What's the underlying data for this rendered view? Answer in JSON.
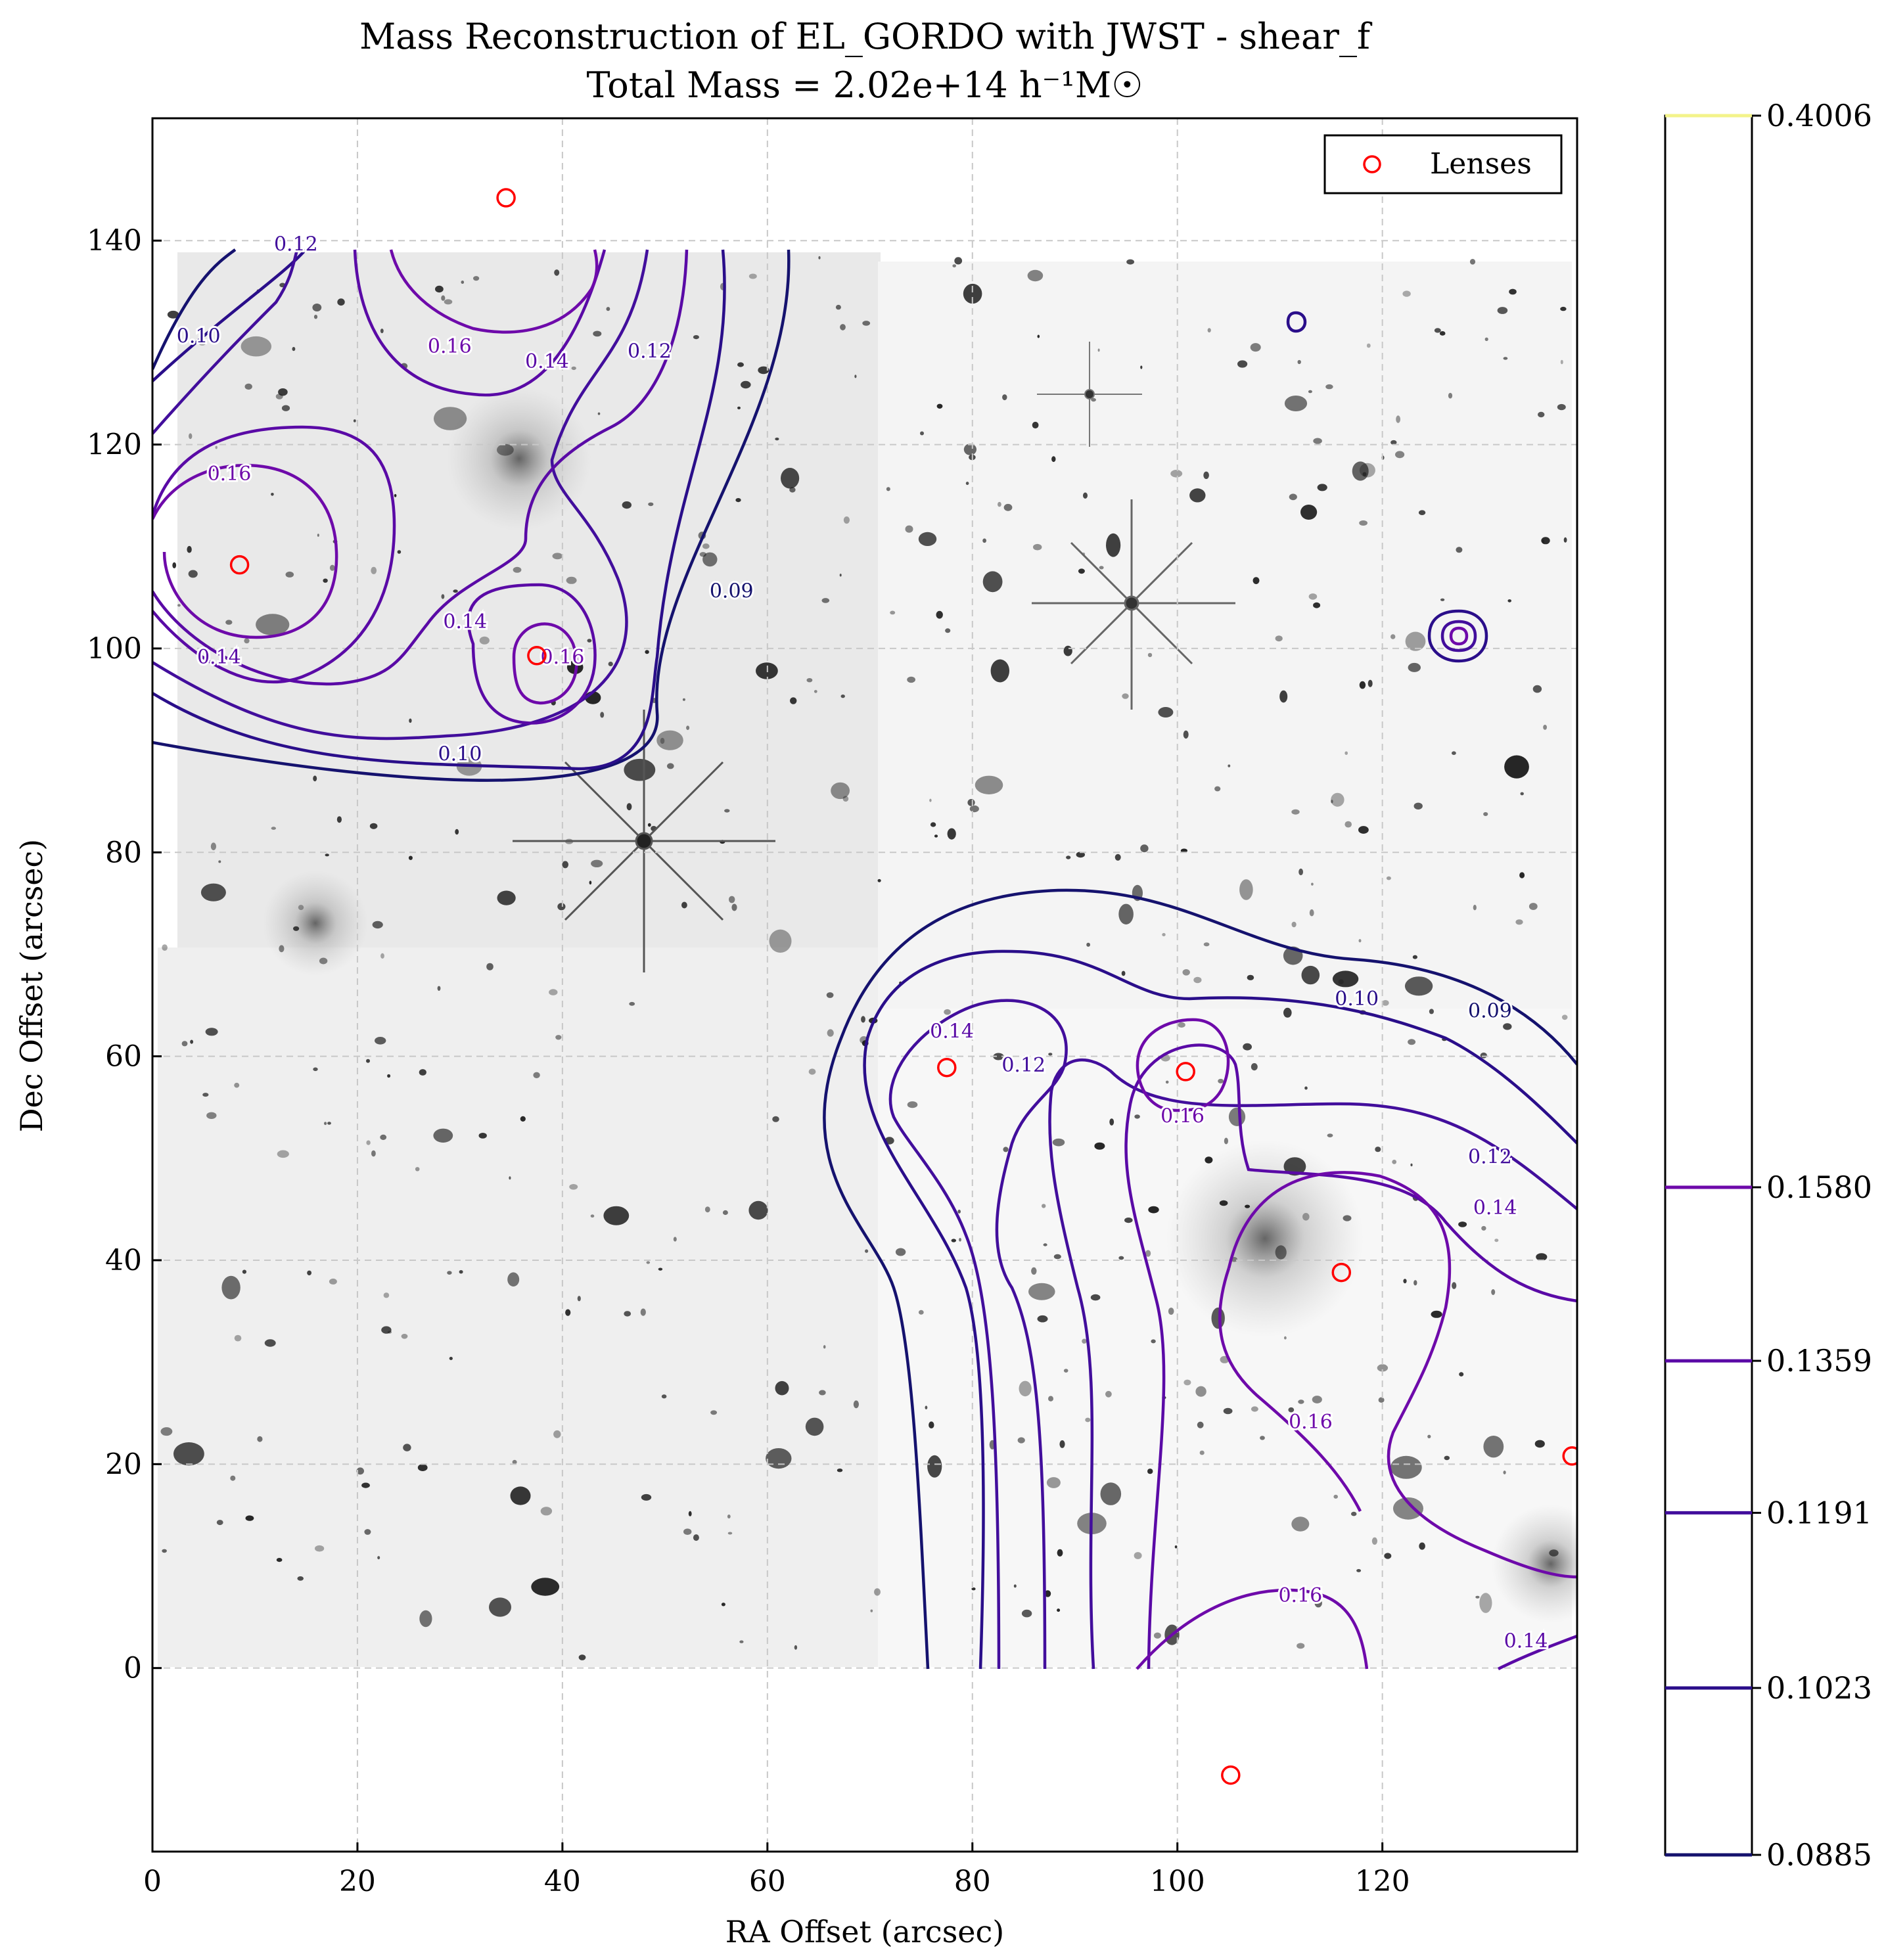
{
  "chart_data": {
    "type": "contour",
    "title": "Mass Reconstruction of EL_GORDO with JWST - shear_f",
    "subtitle": "Total Mass = 2.02e+14 h⁻¹M☉",
    "xlabel": "RA Offset (arcsec)",
    "ylabel": "Dec Offset (arcsec)",
    "xlim": [
      0,
      139
    ],
    "ylim": [
      -18,
      152
    ],
    "xticks": [
      "0",
      "20",
      "40",
      "60",
      "80",
      "100",
      "120"
    ],
    "yticks": [
      "0",
      "20",
      "40",
      "60",
      "80",
      "100",
      "120",
      "140"
    ],
    "grid": true,
    "legend": {
      "position": "top-right",
      "entries": [
        {
          "label": "Lenses",
          "marker": "open-circle",
          "color": "#ff0000"
        }
      ]
    },
    "lenses": [
      {
        "x": 8.5,
        "y": 108.2
      },
      {
        "x": 34.5,
        "y": 144.2
      },
      {
        "x": 37.5,
        "y": 99.3
      },
      {
        "x": 77.5,
        "y": 58.9
      },
      {
        "x": 100.8,
        "y": 58.5
      },
      {
        "x": 116.0,
        "y": 38.8
      },
      {
        "x": 138.5,
        "y": 20.8
      },
      {
        "x": 105.2,
        "y": -10.5
      }
    ],
    "contour_levels": [
      0.09,
      0.1,
      0.12,
      0.14,
      0.16
    ],
    "contour_labels": [
      {
        "text": "0.12",
        "x": 14.0,
        "y": 139.0,
        "level": 0.12
      },
      {
        "text": "0.10",
        "x": 4.5,
        "y": 130.0,
        "level": 0.1
      },
      {
        "text": "0.16",
        "x": 29.0,
        "y": 129.0,
        "level": 0.16
      },
      {
        "text": "0.14",
        "x": 38.5,
        "y": 127.5,
        "level": 0.14
      },
      {
        "text": "0.12",
        "x": 48.5,
        "y": 128.5,
        "level": 0.12
      },
      {
        "text": "0.16",
        "x": 7.5,
        "y": 116.5,
        "level": 0.16
      },
      {
        "text": "0.09",
        "x": 56.5,
        "y": 105.0,
        "level": 0.09
      },
      {
        "text": "0.14",
        "x": 6.5,
        "y": 98.5,
        "level": 0.14
      },
      {
        "text": "0.14",
        "x": 30.5,
        "y": 102.0,
        "level": 0.14
      },
      {
        "text": "0.16",
        "x": 40.0,
        "y": 98.5,
        "level": 0.16
      },
      {
        "text": "0.10",
        "x": 30.0,
        "y": 89.0,
        "level": 0.1
      },
      {
        "text": "0.14",
        "x": 78.0,
        "y": 61.8,
        "level": 0.14
      },
      {
        "text": "0.12",
        "x": 85.0,
        "y": 58.5,
        "level": 0.12
      },
      {
        "text": "0.10",
        "x": 117.5,
        "y": 65.0,
        "level": 0.1
      },
      {
        "text": "0.09",
        "x": 130.5,
        "y": 63.8,
        "level": 0.09
      },
      {
        "text": "0.16",
        "x": 100.5,
        "y": 53.5,
        "level": 0.16
      },
      {
        "text": "0.12",
        "x": 130.5,
        "y": 49.5,
        "level": 0.12
      },
      {
        "text": "0.14",
        "x": 131.0,
        "y": 44.5,
        "level": 0.14
      },
      {
        "text": "0.16",
        "x": 113.0,
        "y": 23.5,
        "level": 0.16
      },
      {
        "text": "0.16",
        "x": 112.0,
        "y": 6.5,
        "level": 0.16
      },
      {
        "text": "0.14",
        "x": 134.0,
        "y": 2.0,
        "level": 0.14
      }
    ],
    "colorbar": {
      "range": [
        0.0885,
        0.4006
      ],
      "labels": [
        "0.4006",
        "0.1580",
        "0.1359",
        "0.1191",
        "0.1023",
        "0.0885"
      ],
      "line_levels": [
        0.4006,
        0.158,
        0.1359,
        0.1191,
        0.1023,
        0.0885
      ]
    },
    "colors": {
      "lens": "#ff0000",
      "level_0.09": "#15126e",
      "level_0.10": "#2a0e8a",
      "level_0.12": "#420e9c",
      "level_0.14": "#5a0aa6",
      "level_0.16": "#6e0aaa",
      "top_line": "#f3f38a"
    }
  }
}
